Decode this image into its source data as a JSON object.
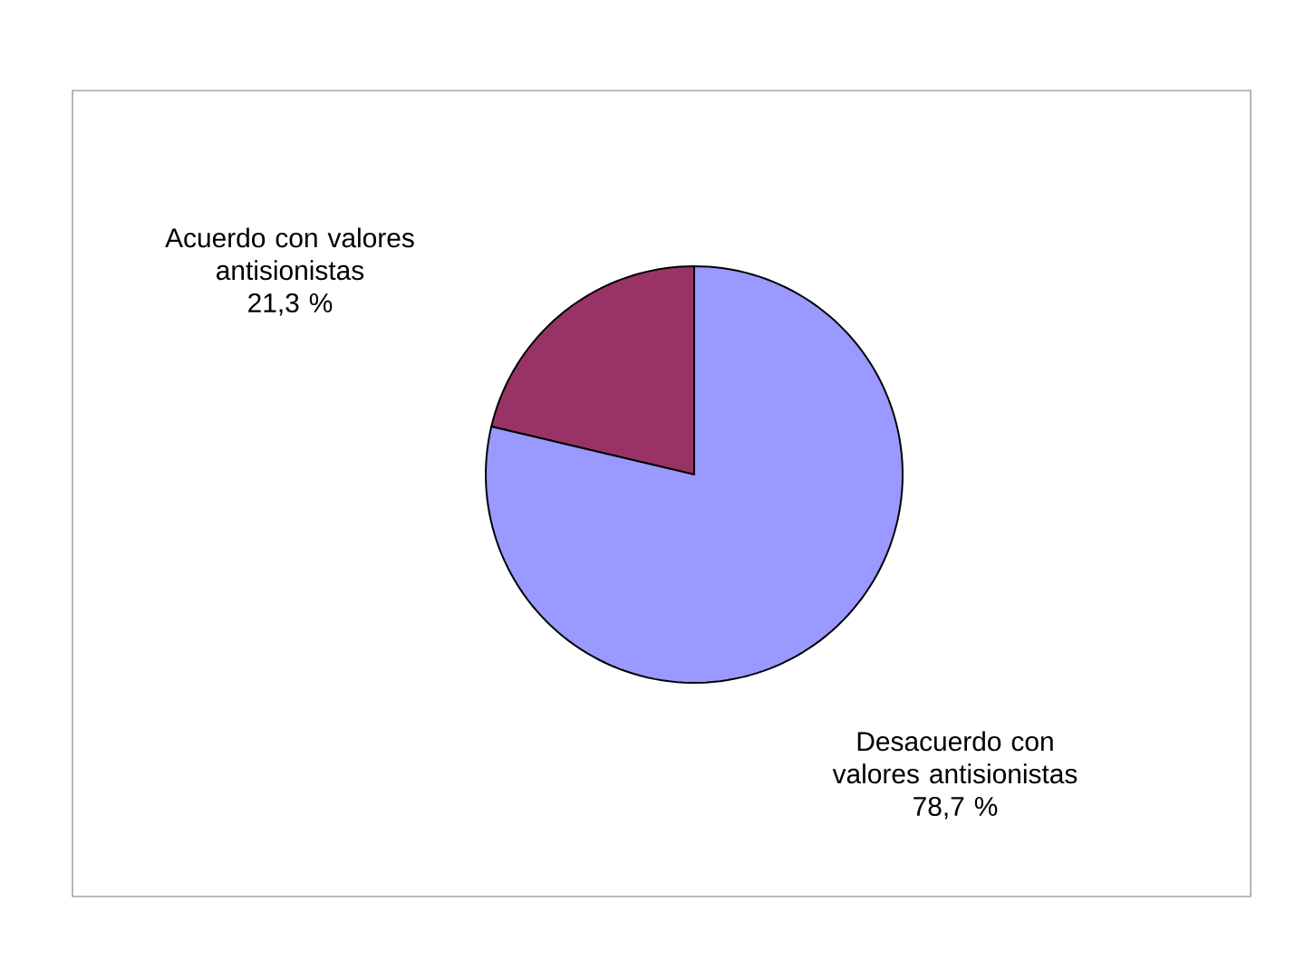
{
  "chart_data": {
    "type": "pie",
    "categories": [
      "Acuerdo con valores antisionistas",
      "Desacuerdo con valores antisionistas"
    ],
    "values": [
      21.3,
      78.7
    ],
    "colors": [
      "#993366",
      "#9999ff"
    ],
    "value_labels": [
      "21,3 %",
      "78,7 %"
    ]
  }
}
